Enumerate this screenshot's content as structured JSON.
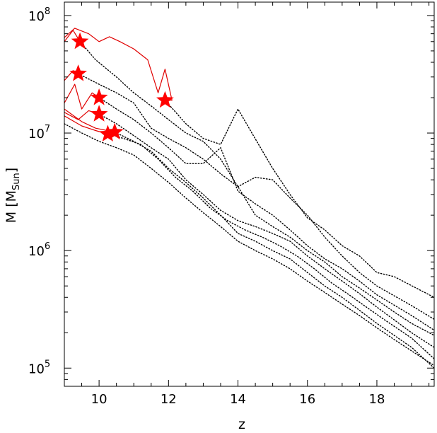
{
  "chart_data": {
    "type": "line",
    "title": "",
    "xlabel": "z",
    "ylabel": "M [M",
    "ylabel_sub": "Sun",
    "ylabel_close": "]",
    "xlim": [
      9.0,
      19.65
    ],
    "ylim": [
      70000,
      130000000
    ],
    "yscale": "log",
    "x_ticks": [
      10,
      12,
      14,
      16,
      18
    ],
    "x_tick_labels": [
      "10",
      "12",
      "14",
      "16",
      "18"
    ],
    "y_ticks": [
      100000,
      1000000,
      10000000,
      100000000
    ],
    "y_tick_labels": [
      {
        "base": "10",
        "exp": "5"
      },
      {
        "base": "10",
        "exp": "6"
      },
      {
        "base": "10",
        "exp": "7"
      },
      {
        "base": "10",
        "exp": "8"
      }
    ],
    "grid": false,
    "legend": "none",
    "colors": {
      "solid": "#e00000",
      "dotted": "#000000",
      "marker": "#ff0000"
    },
    "series": [
      {
        "solid": [
          [
            9.0,
            60000000
          ],
          [
            9.25,
            75000000
          ],
          [
            9.45,
            60000000
          ]
        ],
        "dotted": [
          [
            9.45,
            60000000
          ],
          [
            9.9,
            42000000
          ],
          [
            10.5,
            30000000
          ],
          [
            11.0,
            22000000
          ],
          [
            11.5,
            17000000
          ],
          [
            12.0,
            13000000
          ],
          [
            12.5,
            10000000
          ],
          [
            13.0,
            8500000
          ],
          [
            13.5,
            6000000
          ],
          [
            14.0,
            3500000
          ],
          [
            14.5,
            2000000
          ],
          [
            15.0,
            1600000
          ],
          [
            15.5,
            1300000
          ],
          [
            16.0,
            1000000
          ],
          [
            16.5,
            800000
          ],
          [
            17.0,
            600000
          ],
          [
            17.5,
            480000
          ],
          [
            18.0,
            380000
          ],
          [
            18.5,
            300000
          ],
          [
            19.0,
            240000
          ],
          [
            19.65,
            190000
          ]
        ],
        "marker": [
          9.45,
          60000000
        ]
      },
      {
        "solid": [
          [
            9.0,
            65000000
          ],
          [
            9.3,
            78000000
          ],
          [
            9.7,
            70000000
          ],
          [
            10.0,
            60000000
          ],
          [
            10.3,
            66000000
          ],
          [
            10.6,
            60000000
          ],
          [
            11.0,
            52000000
          ],
          [
            11.4,
            42000000
          ],
          [
            11.7,
            22000000
          ],
          [
            11.9,
            35000000
          ],
          [
            12.1,
            19000000
          ],
          [
            11.9,
            19000000
          ]
        ],
        "dotted": [
          [
            11.9,
            19000000
          ],
          [
            12.5,
            12000000
          ],
          [
            13.0,
            9000000
          ],
          [
            13.5,
            8000000
          ],
          [
            14.0,
            16000000
          ],
          [
            14.4,
            10000000
          ],
          [
            15.0,
            5000000
          ],
          [
            15.5,
            3000000
          ],
          [
            16.0,
            1900000
          ],
          [
            16.5,
            1500000
          ],
          [
            17.0,
            1100000
          ],
          [
            17.5,
            900000
          ],
          [
            18.0,
            650000
          ],
          [
            18.5,
            600000
          ],
          [
            19.65,
            400000
          ]
        ],
        "marker": [
          11.9,
          19000000
        ]
      },
      {
        "solid": [
          [
            9.0,
            28000000
          ],
          [
            9.25,
            34000000
          ],
          [
            9.4,
            32000000
          ]
        ],
        "dotted": [
          [
            9.4,
            32000000
          ],
          [
            10.0,
            26000000
          ],
          [
            10.5,
            22000000
          ],
          [
            11.0,
            18000000
          ],
          [
            11.5,
            11000000
          ],
          [
            12.0,
            9000000
          ],
          [
            12.5,
            7500000
          ],
          [
            13.0,
            6000000
          ],
          [
            13.5,
            4500000
          ],
          [
            14.0,
            3500000
          ],
          [
            14.5,
            4200000
          ],
          [
            15.0,
            4000000
          ],
          [
            15.5,
            2800000
          ],
          [
            16.0,
            2000000
          ],
          [
            16.5,
            1300000
          ],
          [
            17.0,
            900000
          ],
          [
            17.5,
            650000
          ],
          [
            18.0,
            500000
          ],
          [
            19.0,
            340000
          ],
          [
            19.65,
            260000
          ]
        ],
        "marker": [
          9.4,
          32000000
        ]
      },
      {
        "solid": [
          [
            9.0,
            18000000
          ],
          [
            9.3,
            26000000
          ],
          [
            9.5,
            16000000
          ],
          [
            9.8,
            22000000
          ],
          [
            10.0,
            20000000
          ]
        ],
        "dotted": [
          [
            10.0,
            20000000
          ],
          [
            10.5,
            16000000
          ],
          [
            11.0,
            13000000
          ],
          [
            11.5,
            10000000
          ],
          [
            12.0,
            7500000
          ],
          [
            12.5,
            5500000
          ],
          [
            13.0,
            5500000
          ],
          [
            13.5,
            7500000
          ],
          [
            14.0,
            3200000
          ],
          [
            14.5,
            2500000
          ],
          [
            15.0,
            2000000
          ],
          [
            15.5,
            1500000
          ],
          [
            16.0,
            1100000
          ],
          [
            16.5,
            850000
          ],
          [
            17.0,
            700000
          ],
          [
            17.5,
            550000
          ],
          [
            18.0,
            420000
          ],
          [
            19.0,
            280000
          ],
          [
            19.65,
            210000
          ]
        ],
        "marker": [
          10.0,
          20000000
        ]
      },
      {
        "solid": [
          [
            9.0,
            15000000
          ],
          [
            9.4,
            13000000
          ],
          [
            9.7,
            15500000
          ],
          [
            10.0,
            14500000
          ]
        ],
        "dotted": [
          [
            10.0,
            14500000
          ],
          [
            10.5,
            12000000
          ],
          [
            11.0,
            9500000
          ],
          [
            11.5,
            7500000
          ],
          [
            12.0,
            6000000
          ],
          [
            12.5,
            4000000
          ],
          [
            13.0,
            3000000
          ],
          [
            13.5,
            2200000
          ],
          [
            14.0,
            1800000
          ],
          [
            14.5,
            1600000
          ],
          [
            15.0,
            1400000
          ],
          [
            15.5,
            1200000
          ],
          [
            16.0,
            900000
          ],
          [
            16.5,
            700000
          ],
          [
            17.0,
            550000
          ],
          [
            17.5,
            430000
          ],
          [
            18.0,
            330000
          ],
          [
            19.0,
            200000
          ],
          [
            19.65,
            150000
          ]
        ],
        "marker": [
          10.0,
          14500000
        ]
      },
      {
        "solid": [
          [
            9.0,
            14000000
          ],
          [
            9.5,
            11500000
          ],
          [
            9.9,
            10500000
          ],
          [
            10.25,
            9800000
          ]
        ],
        "dotted": [
          [
            10.25,
            9800000
          ],
          [
            10.7,
            9000000
          ],
          [
            11.2,
            8000000
          ],
          [
            11.7,
            6000000
          ],
          [
            12.2,
            4200000
          ],
          [
            12.7,
            3200000
          ],
          [
            13.2,
            2300000
          ],
          [
            13.7,
            1800000
          ],
          [
            14.2,
            1500000
          ],
          [
            14.7,
            1300000
          ],
          [
            15.2,
            1100000
          ],
          [
            15.7,
            900000
          ],
          [
            16.2,
            700000
          ],
          [
            16.7,
            530000
          ],
          [
            17.2,
            420000
          ],
          [
            17.7,
            330000
          ],
          [
            18.2,
            260000
          ],
          [
            19.0,
            180000
          ],
          [
            19.65,
            120000
          ]
        ],
        "marker": [
          10.25,
          9800000
        ]
      },
      {
        "solid": [
          [
            9.0,
            16000000
          ],
          [
            9.5,
            12500000
          ],
          [
            9.9,
            11000000
          ],
          [
            10.45,
            10200000
          ]
        ],
        "dotted": [
          [
            10.45,
            10200000
          ],
          [
            11.0,
            8500000
          ],
          [
            11.5,
            7000000
          ],
          [
            12.0,
            5000000
          ],
          [
            12.5,
            3800000
          ],
          [
            13.0,
            2800000
          ],
          [
            13.5,
            2000000
          ],
          [
            14.0,
            1400000
          ],
          [
            14.5,
            1200000
          ],
          [
            15.0,
            1000000
          ],
          [
            15.5,
            850000
          ],
          [
            16.0,
            650000
          ],
          [
            16.5,
            500000
          ],
          [
            17.0,
            400000
          ],
          [
            17.5,
            310000
          ],
          [
            18.0,
            240000
          ],
          [
            18.5,
            190000
          ],
          [
            19.0,
            150000
          ],
          [
            19.65,
            100000
          ]
        ],
        "marker": [
          10.45,
          10200000
        ]
      },
      {
        "dotted": [
          [
            9.0,
            12000000
          ],
          [
            9.5,
            10000000
          ],
          [
            10.0,
            8500000
          ],
          [
            10.5,
            7500000
          ],
          [
            11.0,
            6500000
          ],
          [
            11.5,
            5000000
          ],
          [
            12.0,
            3800000
          ],
          [
            12.5,
            2800000
          ],
          [
            13.0,
            2100000
          ],
          [
            13.5,
            1600000
          ],
          [
            14.0,
            1200000
          ],
          [
            14.5,
            1000000
          ],
          [
            15.0,
            850000
          ],
          [
            15.5,
            700000
          ],
          [
            16.0,
            550000
          ],
          [
            16.5,
            440000
          ],
          [
            17.0,
            350000
          ],
          [
            17.5,
            280000
          ],
          [
            18.0,
            220000
          ],
          [
            18.5,
            175000
          ],
          [
            19.0,
            140000
          ],
          [
            19.65,
            105000
          ]
        ]
      }
    ]
  }
}
